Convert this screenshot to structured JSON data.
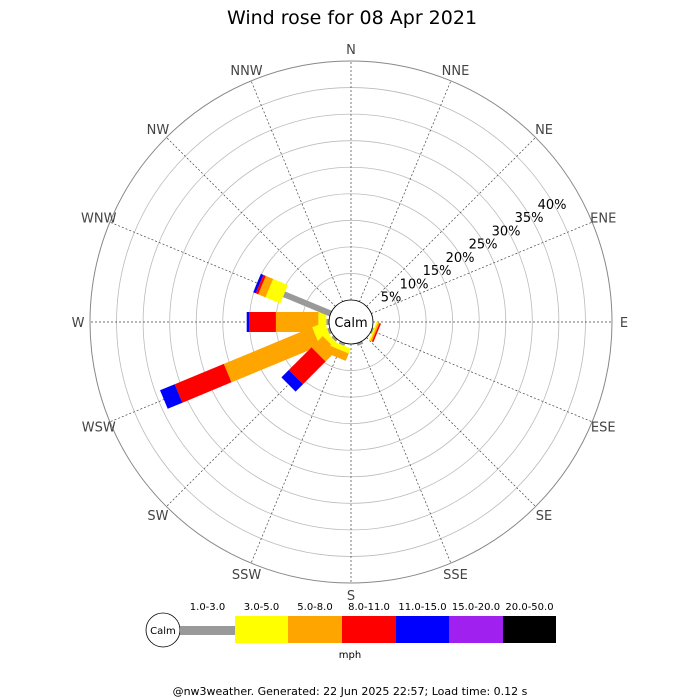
{
  "chart_data": {
    "type": "wind-rose",
    "title": "Wind rose for 08 Apr 2021",
    "center_label": "Calm",
    "directions": [
      "N",
      "NNE",
      "NE",
      "ENE",
      "E",
      "ESE",
      "SE",
      "SSE",
      "S",
      "SSW",
      "SW",
      "WSW",
      "W",
      "WNW",
      "NW",
      "NNW"
    ],
    "radial_ticks": [
      "5%",
      "10%",
      "15%",
      "20%",
      "25%",
      "30%",
      "35%",
      "40%"
    ],
    "radial_values": [
      5,
      10,
      15,
      20,
      25,
      30,
      35,
      40
    ],
    "radial_max": 45,
    "speed_unit": "mph",
    "speed_bins": [
      {
        "label": "1.0-3.0",
        "color": "#999999"
      },
      {
        "label": "3.0-5.0",
        "color": "#ffff00"
      },
      {
        "label": "5.0-8.0",
        "color": "#ffa500"
      },
      {
        "label": "8.0-11.0",
        "color": "#ff0000"
      },
      {
        "label": "11.0-15.0",
        "color": "#0000ff"
      },
      {
        "label": "15.0-20.0",
        "color": "#a020f0"
      },
      {
        "label": "20.0-50.0",
        "color": "#000000"
      }
    ],
    "series": [
      {
        "direction": "W",
        "cumulative": [
          0.5,
          2.0,
          10.0,
          15.0,
          15.5
        ]
      },
      {
        "direction": "WNW",
        "cumulative": [
          9.5,
          12.5,
          14.0,
          14.5,
          15.0
        ]
      },
      {
        "direction": "WSW",
        "cumulative": [
          0.5,
          3.0,
          21.0,
          31.0,
          34.0
        ]
      },
      {
        "direction": "SW",
        "cumulative": [
          0.5,
          1.5,
          4.5,
          10.5,
          12.5
        ]
      },
      {
        "direction": "SSW",
        "cumulative": [
          0.5,
          1.5,
          3.0
        ]
      },
      {
        "direction": "SSE",
        "cumulative": [
          0.5
        ]
      },
      {
        "direction": "ESE",
        "cumulative": [
          0.3,
          0.6,
          0.9,
          1.2
        ]
      }
    ]
  },
  "footer": "@nw3weather. Generated: 22 Jun 2025 22:57; Load time: 0.12 s"
}
